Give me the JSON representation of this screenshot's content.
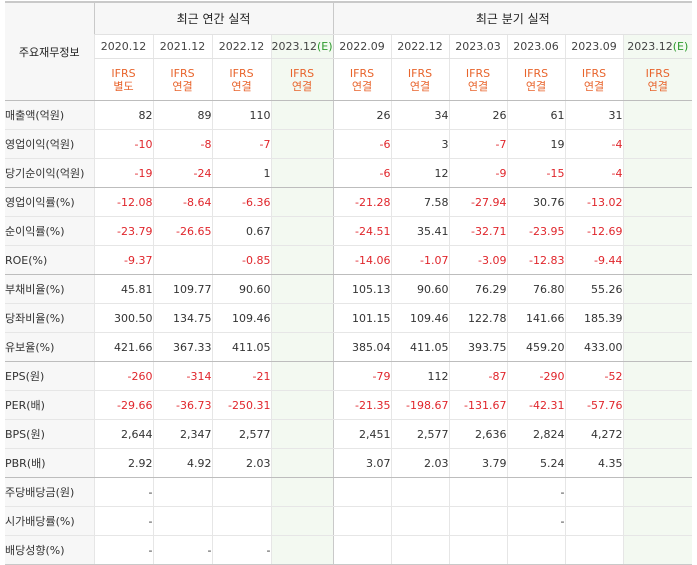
{
  "header": {
    "row_label": "주요재무정보",
    "annual_title": "최근 연간 실적",
    "quarterly_title": "최근 분기 실적"
  },
  "columns": [
    {
      "period": "2020.12",
      "estimate": "",
      "std1": "IFRS",
      "std2": "별도"
    },
    {
      "period": "2021.12",
      "estimate": "",
      "std1": "IFRS",
      "std2": "연결"
    },
    {
      "period": "2022.12",
      "estimate": "",
      "std1": "IFRS",
      "std2": "연결"
    },
    {
      "period": "2023.12",
      "estimate": "(E)",
      "std1": "IFRS",
      "std2": "연결"
    },
    {
      "period": "2022.09",
      "estimate": "",
      "std1": "IFRS",
      "std2": "연결"
    },
    {
      "period": "2022.12",
      "estimate": "",
      "std1": "IFRS",
      "std2": "연결"
    },
    {
      "period": "2023.03",
      "estimate": "",
      "std1": "IFRS",
      "std2": "연결"
    },
    {
      "period": "2023.06",
      "estimate": "",
      "std1": "IFRS",
      "std2": "연결"
    },
    {
      "period": "2023.09",
      "estimate": "",
      "std1": "IFRS",
      "std2": "연결"
    },
    {
      "period": "2023.12",
      "estimate": "(E)",
      "std1": "IFRS",
      "std2": "연결"
    }
  ],
  "rows": [
    {
      "label": "매출액(억원)",
      "values": [
        "82",
        "89",
        "110",
        "",
        "26",
        "34",
        "26",
        "61",
        "31",
        ""
      ]
    },
    {
      "label": "영업이익(억원)",
      "values": [
        "-10",
        "-8",
        "-7",
        "",
        "-6",
        "3",
        "-7",
        "19",
        "-4",
        ""
      ]
    },
    {
      "label": "당기순이익(억원)",
      "values": [
        "-19",
        "-24",
        "1",
        "",
        "-6",
        "12",
        "-9",
        "-15",
        "-4",
        ""
      ]
    },
    {
      "label": "영업이익률(%)",
      "values": [
        "-12.08",
        "-8.64",
        "-6.36",
        "",
        "-21.28",
        "7.58",
        "-27.94",
        "30.76",
        "-13.02",
        ""
      ]
    },
    {
      "label": "순이익률(%)",
      "values": [
        "-23.79",
        "-26.65",
        "0.67",
        "",
        "-24.51",
        "35.41",
        "-32.71",
        "-23.95",
        "-12.69",
        ""
      ]
    },
    {
      "label": "ROE(%)",
      "values": [
        "-9.37",
        "",
        "-0.85",
        "",
        "-14.06",
        "-1.07",
        "-3.09",
        "-12.83",
        "-9.44",
        ""
      ]
    },
    {
      "label": "부채비율(%)",
      "values": [
        "45.81",
        "109.77",
        "90.60",
        "",
        "105.13",
        "90.60",
        "76.29",
        "76.80",
        "55.26",
        ""
      ]
    },
    {
      "label": "당좌비율(%)",
      "values": [
        "300.50",
        "134.75",
        "109.46",
        "",
        "101.15",
        "109.46",
        "122.78",
        "141.66",
        "185.39",
        ""
      ]
    },
    {
      "label": "유보율(%)",
      "values": [
        "421.66",
        "367.33",
        "411.05",
        "",
        "385.04",
        "411.05",
        "393.75",
        "459.20",
        "433.00",
        ""
      ]
    },
    {
      "label": "EPS(원)",
      "values": [
        "-260",
        "-314",
        "-21",
        "",
        "-79",
        "112",
        "-87",
        "-290",
        "-52",
        ""
      ]
    },
    {
      "label": "PER(배)",
      "values": [
        "-29.66",
        "-36.73",
        "-250.31",
        "",
        "-21.35",
        "-198.67",
        "-131.67",
        "-42.31",
        "-57.76",
        ""
      ]
    },
    {
      "label": "BPS(원)",
      "values": [
        "2,644",
        "2,347",
        "2,577",
        "",
        "2,451",
        "2,577",
        "2,636",
        "2,824",
        "4,272",
        ""
      ]
    },
    {
      "label": "PBR(배)",
      "values": [
        "2.92",
        "4.92",
        "2.03",
        "",
        "3.07",
        "2.03",
        "3.79",
        "5.24",
        "4.35",
        ""
      ]
    },
    {
      "label": "주당배당금(원)",
      "values": [
        "-",
        "",
        "",
        "",
        "",
        "",
        "",
        "-",
        "",
        ""
      ]
    },
    {
      "label": "시가배당률(%)",
      "values": [
        "-",
        "",
        "",
        "",
        "",
        "",
        "",
        "-",
        "",
        ""
      ]
    },
    {
      "label": "배당성향(%)",
      "values": [
        "-",
        "-",
        "-",
        "",
        "",
        "",
        "",
        "",
        "",
        ""
      ]
    }
  ]
}
